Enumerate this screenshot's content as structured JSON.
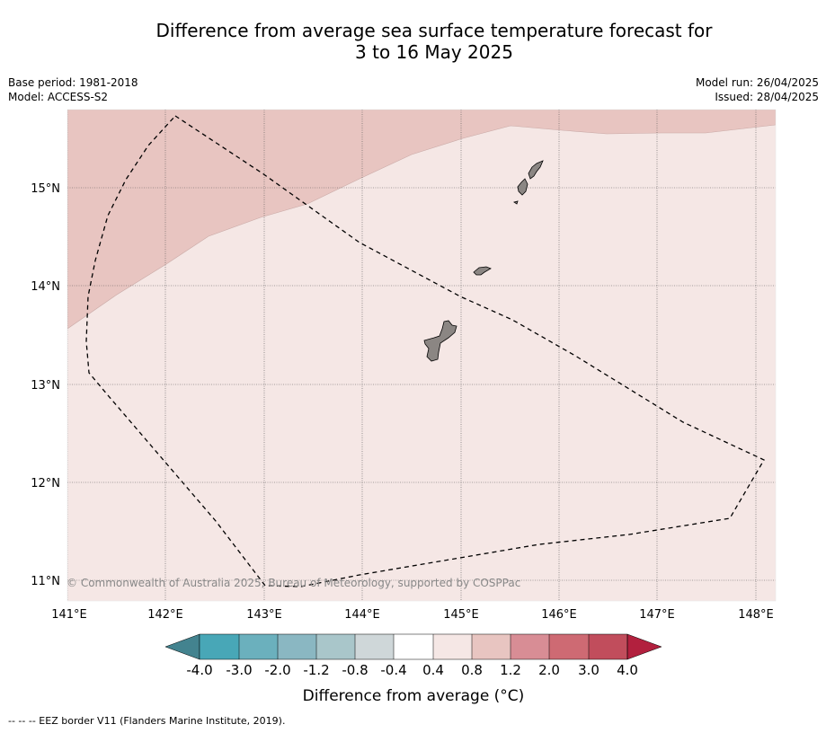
{
  "title": {
    "line1": "Difference from average sea surface temperature forecast for",
    "line2": "3 to 16 May 2025"
  },
  "metadata": {
    "base_period": "Base period: 1981-2018",
    "model": "Model: ACCESS-S2",
    "model_run": "Model run: 26/04/2025",
    "issued": "Issued: 28/04/2025"
  },
  "map": {
    "lon_ticks": [
      "141°E",
      "142°E",
      "143°E",
      "144°E",
      "145°E",
      "146°E",
      "147°E",
      "148°E"
    ],
    "lat_ticks": [
      "15°N",
      "14°N",
      "13°N",
      "12°N",
      "11°N"
    ],
    "copyright": "© Commonwealth of Australia 2025, Bureau of Meteorology, supported by COSPPac",
    "region_colors": {
      "anomaly_0.4_to_0.8": "#f5e7e5",
      "anomaly_0.8_to_1.2": "#e8c5c1"
    },
    "land_color": "#8b8683"
  },
  "colorbar": {
    "tick_labels": [
      "-4.0",
      "-3.0",
      "-2.0",
      "-1.2",
      "-0.8",
      "-0.4",
      "0.4",
      "0.8",
      "1.2",
      "2.0",
      "3.0",
      "4.0"
    ],
    "colors": [
      "#48a7b7",
      "#6bb0bd",
      "#8ab7c2",
      "#a9c6ca",
      "#cfd7d9",
      "#ffffff",
      "#f5e7e5",
      "#e8c5c1",
      "#d88d95",
      "#ce6a73",
      "#c14d5c"
    ],
    "extend_low_color": "#43838f",
    "extend_high_color": "#b2203e",
    "label": "Difference from average (°C)"
  },
  "legend_note": "--  --  -- EEZ border V11 (Flanders Marine Institute, 2019)."
}
